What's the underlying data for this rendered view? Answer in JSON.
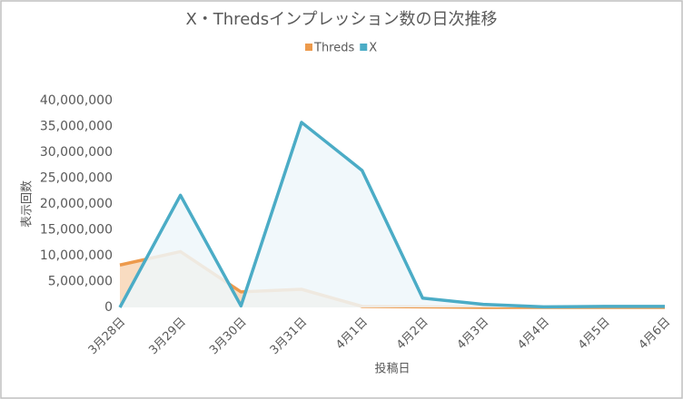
{
  "chart_data": {
    "type": "area",
    "title": "X・Thredsインプレッション数の日次推移",
    "x_label": "投稿日",
    "y_label": "表示回数",
    "categories": [
      "3月28日",
      "3月29日",
      "3月30日",
      "3月31日",
      "4月1日",
      "4月2日",
      "4月3日",
      "4月4日",
      "4月5日",
      "4月6日"
    ],
    "series": [
      {
        "name": "Threds",
        "color": "#ed9a4c",
        "values": [
          8200000,
          10800000,
          3000000,
          3500000,
          200000,
          100000,
          0,
          0,
          0,
          0
        ]
      },
      {
        "name": "X",
        "color": "#4bacc6",
        "values": [
          0,
          21700000,
          300000,
          35800000,
          26500000,
          1800000,
          600000,
          100000,
          200000,
          200000
        ]
      }
    ],
    "ylim": [
      0,
      40000000
    ],
    "yticks": [
      0,
      {
        "value": 5000000,
        "label": "5,000,000"
      },
      {
        "value": 10000000,
        "label": "10,000,000"
      },
      {
        "value": 15000000,
        "label": "15,000,000"
      },
      {
        "value": 20000000,
        "label": "20,000,000"
      },
      {
        "value": 25000000,
        "label": "25,000,000"
      },
      {
        "value": 30000000,
        "label": "30,000,000"
      },
      {
        "value": 35000000,
        "label": "35,000,000"
      },
      {
        "value": 40000000,
        "label": "40,000,000"
      }
    ],
    "legend": "top",
    "grid": false
  }
}
